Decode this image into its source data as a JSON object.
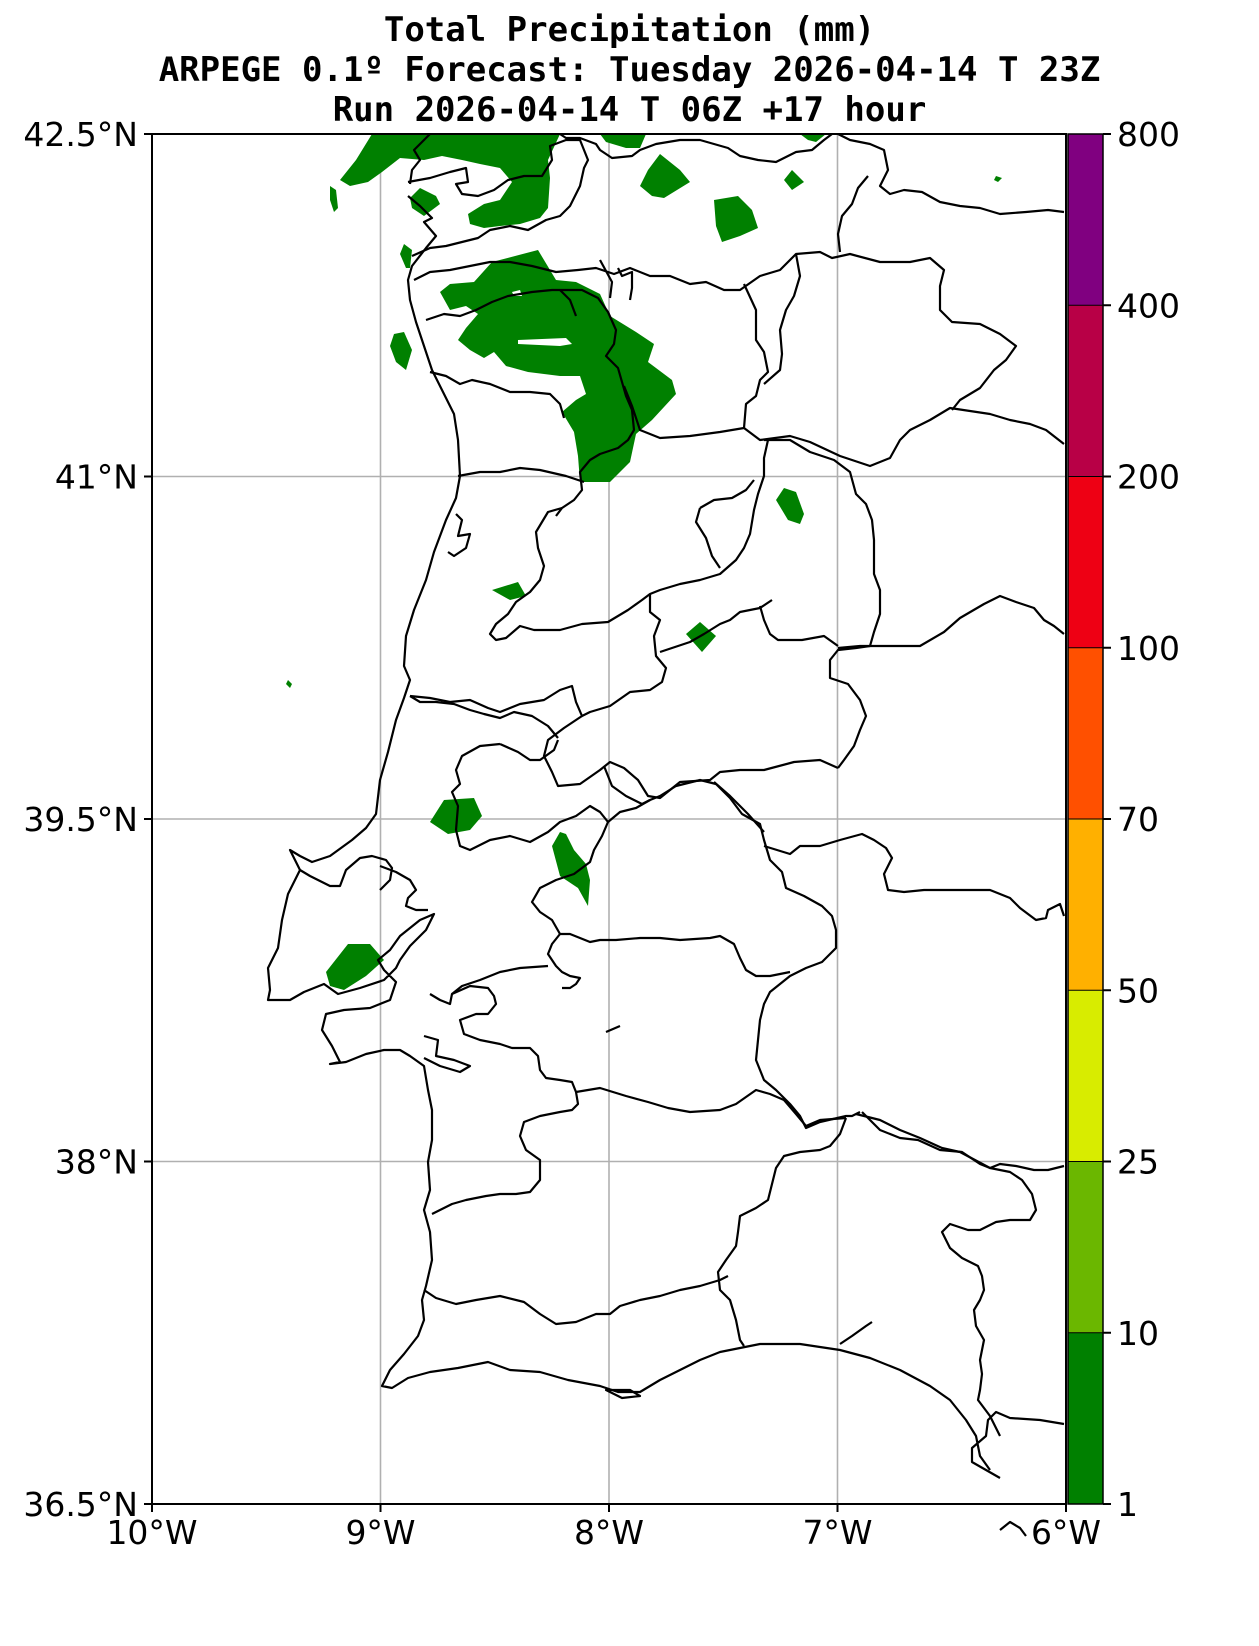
{
  "title": {
    "line1": "Total Precipitation (mm)",
    "line2": "ARPEGE 0.1º Forecast: Tuesday 2026-04-14 T 23Z",
    "line3": "Run 2026-04-14 T 06Z +17 hour"
  },
  "axes": {
    "y_ticks": [
      {
        "value": 42.5,
        "label": "42.5°N"
      },
      {
        "value": 41.0,
        "label": "41°N"
      },
      {
        "value": 39.5,
        "label": "39.5°N"
      },
      {
        "value": 38.0,
        "label": "38°N"
      },
      {
        "value": 36.5,
        "label": "36.5°N"
      }
    ],
    "x_ticks": [
      {
        "value": -10,
        "label": "10°W"
      },
      {
        "value": -9,
        "label": "9°W"
      },
      {
        "value": -8,
        "label": "8°W"
      },
      {
        "value": -7,
        "label": "7°W"
      },
      {
        "value": -6,
        "label": "6°W"
      }
    ],
    "lon_range": [
      -10,
      -6
    ],
    "lat_range": [
      36.5,
      42.5
    ],
    "grid": true
  },
  "colorbar": {
    "levels": [
      "1",
      "10",
      "25",
      "50",
      "70",
      "100",
      "200",
      "400",
      "800"
    ],
    "colors": [
      "#008000",
      "#6bb700",
      "#d8ec00",
      "#ffb000",
      "#ff5000",
      "#ee0014",
      "#b80046",
      "#800080"
    ],
    "grid_color": "#b0b0b0",
    "precip_color": "#008000"
  }
}
